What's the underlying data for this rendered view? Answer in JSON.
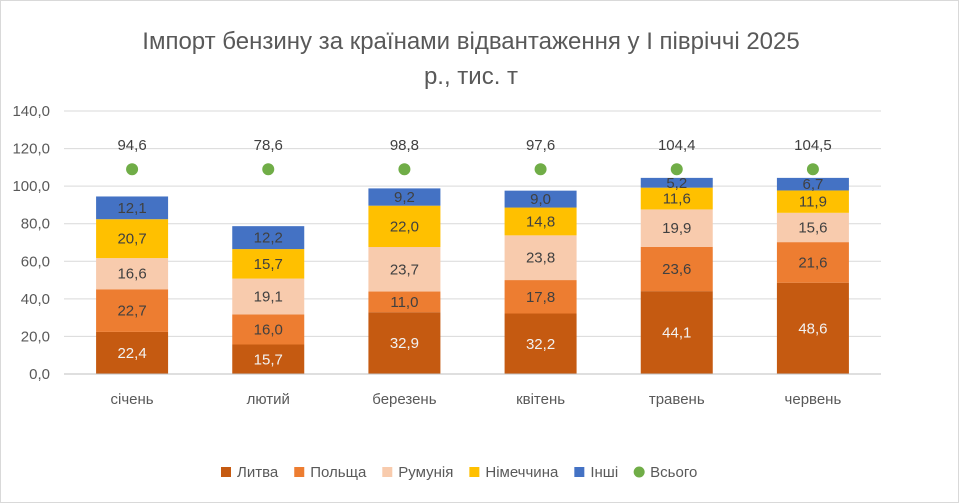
{
  "chart_data": {
    "type": "bar",
    "stacked": true,
    "title_lines": [
      "Імпорт бензину за країнами відвантаження у І півріччі 2025",
      "р., тис. т"
    ],
    "categories": [
      "січень",
      "лютий",
      "березень",
      "квітень",
      "травень",
      "червень"
    ],
    "ylim": [
      0,
      140
    ],
    "yticks": [
      "0,0",
      "20,0",
      "40,0",
      "60,0",
      "80,0",
      "100,0",
      "120,0",
      "140,0"
    ],
    "grid": true,
    "legend_position": "bottom",
    "series": [
      {
        "name": "Литва",
        "color": "#c55a11",
        "label_color": "#f2f2f2",
        "values": [
          22.4,
          15.7,
          32.9,
          32.2,
          44.1,
          48.6
        ],
        "labels": [
          "22,4",
          "15,7",
          "32,9",
          "32,2",
          "44,1",
          "48,6"
        ]
      },
      {
        "name": "Польща",
        "color": "#ed7d31",
        "label_color": "#404040",
        "values": [
          22.7,
          16.0,
          11.0,
          17.8,
          23.6,
          21.6
        ],
        "labels": [
          "22,7",
          "16,0",
          "11,0",
          "17,8",
          "23,6",
          "21,6"
        ]
      },
      {
        "name": "Румунія",
        "color": "#f8cbad",
        "label_color": "#404040",
        "values": [
          16.6,
          19.1,
          23.7,
          23.8,
          19.9,
          15.6
        ],
        "labels": [
          "16,6",
          "19,1",
          "23,7",
          "23,8",
          "19,9",
          "15,6"
        ]
      },
      {
        "name": "Німеччина",
        "color": "#ffc000",
        "label_color": "#404040",
        "values": [
          20.7,
          15.7,
          22.0,
          14.8,
          11.6,
          11.9
        ],
        "labels": [
          "20,7",
          "15,7",
          "22,0",
          "14,8",
          "11,6",
          "11,9"
        ]
      },
      {
        "name": "Інші",
        "color": "#4472c4",
        "label_color": "#404040",
        "values": [
          12.1,
          12.2,
          9.2,
          9.0,
          5.2,
          6.7
        ],
        "labels": [
          "12,1",
          "12,2",
          "9,2",
          "9,0",
          "5,2",
          "6,7"
        ]
      }
    ],
    "total": {
      "name": "Всього",
      "color": "#70ad47",
      "values": [
        94.6,
        78.6,
        98.8,
        97.6,
        104.4,
        104.5
      ],
      "labels": [
        "94,6",
        "78,6",
        "98,8",
        "97,6",
        "104,4",
        "104,5"
      ],
      "marker_y": 109
    }
  }
}
